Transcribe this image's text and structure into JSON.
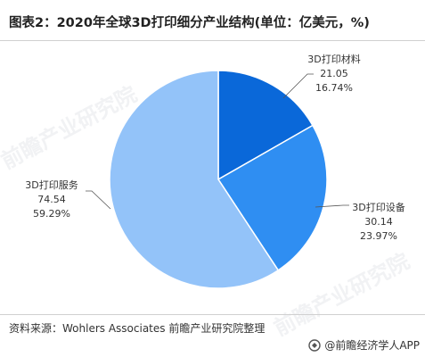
{
  "header": {
    "title": "图表2：2020年全球3D打印细分产业结构(单位：亿美元，%)"
  },
  "chart_data": {
    "type": "pie",
    "title": "图表2：2020年全球3D打印细分产业结构(单位：亿美元，%)",
    "unit": "亿美元",
    "series": [
      {
        "name": "3D打印材料",
        "value": 21.05,
        "percent": "16.74%",
        "color": "#0a68d9"
      },
      {
        "name": "3D打印设备",
        "value": 30.14,
        "percent": "23.97%",
        "color": "#2f8ef2"
      },
      {
        "name": "3D打印服务",
        "value": 74.54,
        "percent": "59.29%",
        "color": "#93c3f9"
      }
    ]
  },
  "footer": {
    "source": "资料来源：Wohlers Associates 前瞻产业研究院整理",
    "brand": "@前瞻经济学人APP"
  },
  "watermark": {
    "text": "前瞻产业研究院"
  },
  "icons": {
    "brand_logo": "qianzhan-logo-icon"
  }
}
